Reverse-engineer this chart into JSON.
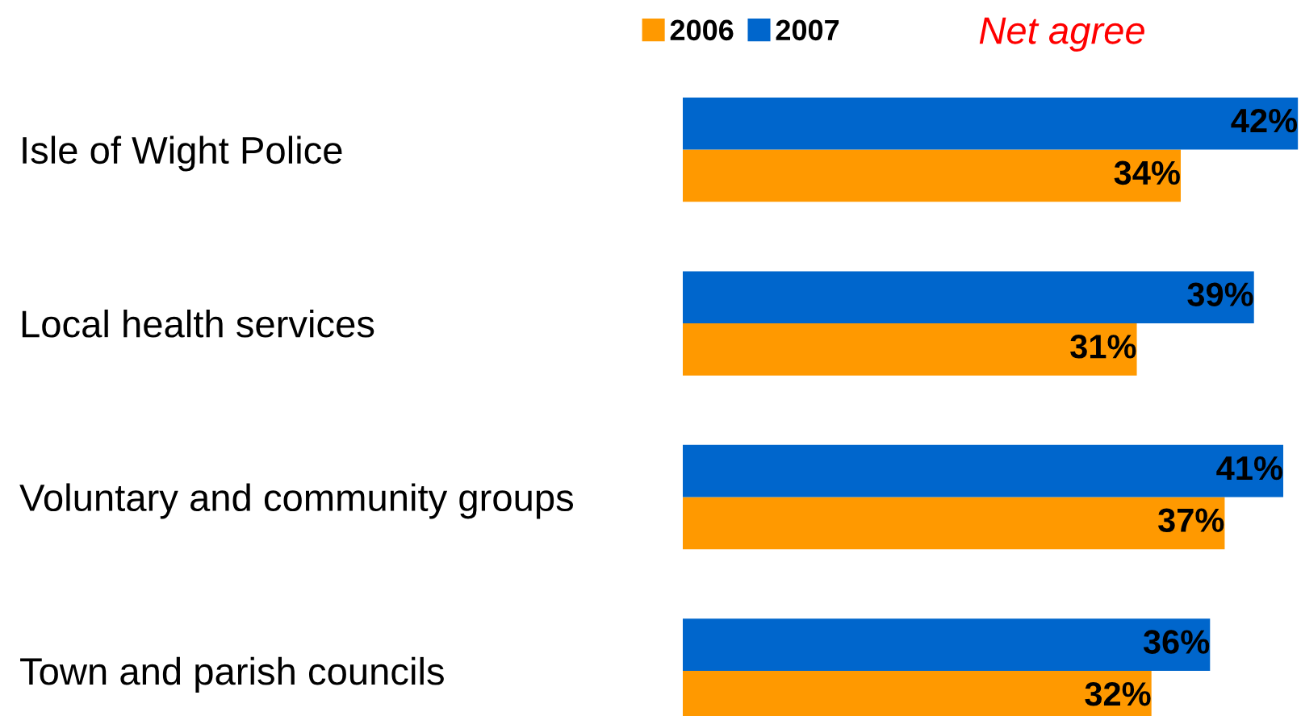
{
  "chart_data": {
    "type": "bar",
    "orientation": "horizontal",
    "categories": [
      "Isle of Wight Police",
      "Local health services",
      "Voluntary and community groups",
      "Town and parish councils"
    ],
    "series": [
      {
        "name": "2006",
        "color": "#ff9900",
        "values": [
          34,
          31,
          37,
          32
        ],
        "value_labels": [
          "34%",
          "31%",
          "37%",
          "32%"
        ]
      },
      {
        "name": "2007",
        "color": "#0066cc",
        "values": [
          42,
          39,
          41,
          36
        ],
        "value_labels": [
          "42%",
          "39%",
          "41%",
          "36%"
        ]
      }
    ],
    "legend": "top",
    "grid": false,
    "annotations": [
      "Net agree"
    ]
  }
}
